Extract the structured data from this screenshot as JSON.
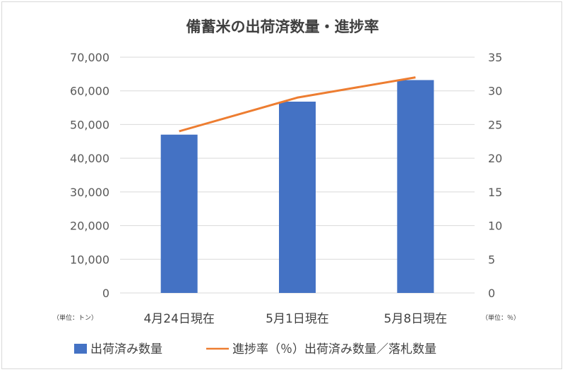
{
  "chart_data": {
    "type": "bar",
    "title": "備蓄米の出荷済数量・進捗率",
    "categories": [
      "4月24日現在",
      "5月1日現在",
      "5月8日現在"
    ],
    "series": [
      {
        "name": "出荷済み数量",
        "type": "bar",
        "axis": "left",
        "color": "#4472c4",
        "values": [
          47000,
          56800,
          63200
        ]
      },
      {
        "name": "進捗率（％）出荷済み数量／落札数量",
        "type": "line",
        "axis": "right",
        "color": "#ed7d31",
        "values": [
          24,
          29,
          32
        ]
      }
    ],
    "y_left": {
      "range": [
        0,
        70000
      ],
      "ticks": [
        "0",
        "10,000",
        "20,000",
        "30,000",
        "40,000",
        "50,000",
        "60,000",
        "70,000"
      ],
      "unit_label": "（単位：トン）"
    },
    "y_right": {
      "range": [
        0,
        35
      ],
      "ticks": [
        "0",
        "5",
        "10",
        "15",
        "20",
        "25",
        "30",
        "35"
      ],
      "unit_label": "（単位：％）"
    },
    "grid": true,
    "legend_position": "bottom"
  }
}
